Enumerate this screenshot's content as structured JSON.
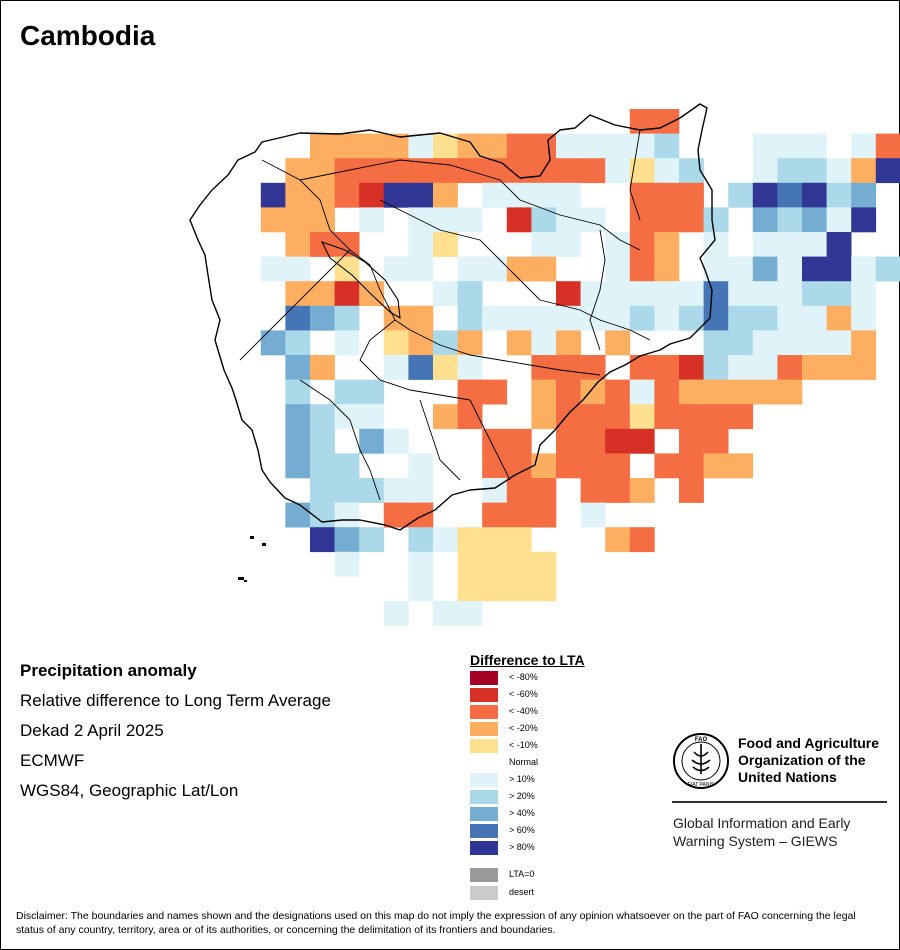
{
  "title": "Cambodia",
  "info": {
    "heading": "Precipitation anomaly",
    "line1": "Relative difference to Long Term Average",
    "line2": "Dekad 2 April 2025",
    "line3": "ECMWF",
    "line4": "WGS84, Geographic Lat/Lon"
  },
  "legend": {
    "title": "Difference to LTA",
    "items": [
      {
        "label": "< -80%",
        "color": "#a50026"
      },
      {
        "label": "< -60%",
        "color": "#d73027"
      },
      {
        "label": "< -40%",
        "color": "#f46d43"
      },
      {
        "label": "< -20%",
        "color": "#fdae61"
      },
      {
        "label": "< -10%",
        "color": "#fee090"
      },
      {
        "label": "Normal",
        "color": "#ffffff"
      },
      {
        "label": "> 10%",
        "color": "#e0f3f8"
      },
      {
        "label": "> 20%",
        "color": "#abd9e9"
      },
      {
        "label": "> 40%",
        "color": "#74add1"
      },
      {
        "label": "> 60%",
        "color": "#4575b4"
      },
      {
        "label": "> 80%",
        "color": "#313695"
      }
    ],
    "extra": [
      {
        "label": "LTA=0",
        "color": "#999999"
      },
      {
        "label": "desert",
        "color": "#cccccc"
      }
    ]
  },
  "org": {
    "logo_text": "FAO",
    "logo_motto": "FIAT PANIS",
    "name_line1": "Food and Agriculture",
    "name_line2": "Organization of the",
    "name_line3": "United Nations",
    "giews_line1": "Global Information and Early",
    "giews_line2": "Warning System – GIEWS"
  },
  "disclaimer": "Disclaimer: The boundaries and names shown and the designations used on this map do not imply the expression of any opinion whatsoever on the part of FAO concerning the legal status of any country, territory, area or of its authorities, or concerning the delimitation of its frontiers and boundaries.",
  "map_grid": {
    "rows": [
      "..................rr........",
      ".....hhhhwxhhrrwwllb...lll.lr",
      "....hhrrrrrrrrrrrwxlb..lbbwhd",
      "...dffrmddf.wwww..rrr.bdcdbe",
      "...fff.w.lww.mbww.rrrb.ebewd",
      "....frr..wy...ll.wrh.w.wwwd.",
      "...ww.y.ww.wlhh..wrh.wwewddwb",
      "....ffnf..wb...mlllwlcwwwbbw",
      "....ceb.hh.bwwllwlbwbcbbwwfw",
      "...eb.w.yhbh.hwh.h...bbwwwwf",
      "....eh..wcyw..rrr.rrnbwwrhhf",
      "....b.bb...rr.hrhrwrhhhhh...",
      "....ebww..hr..frrryrrrr.....",
      "....eb.ew...rr.rrnn.rr......",
      "....ebb..w..rrhrrr.rrhh.....",
      ".....bbbww..wrr.rrh.r.......",
      "....ebw.rr..rrr.w...........",
      ".....deb.bwyyy...hr.........",
      "......w..w.yyyy.............",
      ".........w.yyyy.............",
      "........w.ww................"
    ]
  }
}
